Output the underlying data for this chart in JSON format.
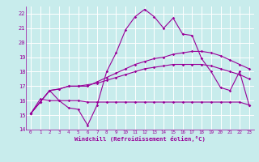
{
  "xlabel": "Windchill (Refroidissement éolien,°C)",
  "bg_color": "#c8ecec",
  "grid_color": "#ffffff",
  "line_color": "#990099",
  "xlim": [
    -0.5,
    23.5
  ],
  "ylim": [
    14,
    22.5
  ],
  "yticks": [
    14,
    15,
    16,
    17,
    18,
    19,
    20,
    21,
    22
  ],
  "xticks": [
    0,
    1,
    2,
    3,
    4,
    5,
    6,
    7,
    8,
    9,
    10,
    11,
    12,
    13,
    14,
    15,
    16,
    17,
    18,
    19,
    20,
    21,
    22,
    23
  ],
  "series": [
    [
      15.1,
      15.9,
      16.7,
      16.0,
      15.5,
      15.4,
      14.3,
      15.7,
      18.0,
      19.3,
      20.9,
      21.8,
      22.3,
      21.8,
      21.0,
      21.7,
      20.6,
      20.5,
      18.9,
      18.0,
      16.9,
      16.7,
      18.0,
      15.7
    ],
    [
      15.1,
      15.9,
      16.7,
      16.8,
      17.0,
      17.0,
      17.0,
      17.3,
      17.6,
      17.9,
      18.2,
      18.5,
      18.7,
      18.9,
      19.0,
      19.2,
      19.3,
      19.4,
      19.4,
      19.3,
      19.1,
      18.8,
      18.5,
      18.2
    ],
    [
      15.1,
      15.9,
      16.7,
      16.8,
      17.0,
      17.0,
      17.1,
      17.2,
      17.4,
      17.6,
      17.8,
      18.0,
      18.2,
      18.3,
      18.4,
      18.5,
      18.5,
      18.5,
      18.5,
      18.4,
      18.2,
      18.0,
      17.8,
      17.5
    ],
    [
      15.1,
      16.1,
      16.0,
      16.0,
      16.0,
      16.0,
      15.9,
      15.9,
      15.9,
      15.9,
      15.9,
      15.9,
      15.9,
      15.9,
      15.9,
      15.9,
      15.9,
      15.9,
      15.9,
      15.9,
      15.9,
      15.9,
      15.9,
      15.7
    ]
  ]
}
